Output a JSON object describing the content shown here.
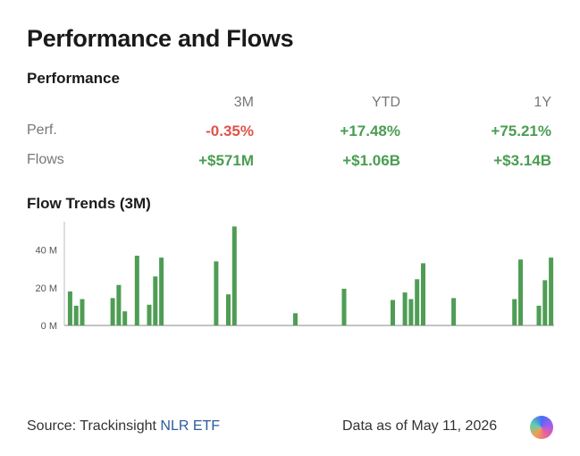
{
  "title": "Performance and Flows",
  "performance": {
    "section_label": "Performance",
    "columns": [
      "3M",
      "YTD",
      "1Y"
    ],
    "rows": [
      {
        "label": "Perf.",
        "values": [
          "-0.35%",
          "+17.48%",
          "+75.21%"
        ],
        "signs": [
          "neg",
          "pos",
          "pos"
        ]
      },
      {
        "label": "Flows",
        "values": [
          "+$571M",
          "+$1.06B",
          "+$3.14B"
        ],
        "signs": [
          "pos",
          "pos",
          "pos"
        ]
      }
    ]
  },
  "trends": {
    "section_label": "Flow Trends (3M)"
  },
  "chart_data": {
    "type": "bar",
    "y_ticks": [
      "0 M",
      "20 M",
      "40 M"
    ],
    "ylim": [
      0,
      55
    ],
    "bar_color": "#4f9d55",
    "values": [
      18,
      10.5,
      14,
      0,
      0,
      0,
      0,
      14.5,
      21.5,
      7.5,
      0,
      37,
      0,
      11,
      26,
      36,
      0,
      0,
      0,
      0,
      0,
      0,
      0,
      0,
      34,
      0,
      16.5,
      52.5,
      0,
      0,
      0,
      0,
      0,
      0,
      0,
      0,
      0,
      6.5,
      0,
      0,
      0,
      0,
      0,
      0,
      0,
      19.5,
      0,
      0,
      0,
      0,
      0,
      0,
      0,
      13.5,
      0,
      17.5,
      14,
      24.5,
      33,
      0,
      0,
      0,
      0,
      14.5,
      0,
      0,
      0,
      0,
      0,
      0,
      0,
      0,
      0,
      14,
      35,
      0,
      0,
      10.5,
      24,
      36
    ]
  },
  "footer": {
    "source_prefix": "Source: Trackinsight ",
    "source_link": "NLR ETF",
    "as_of": "Data as of May 11, 2026"
  }
}
